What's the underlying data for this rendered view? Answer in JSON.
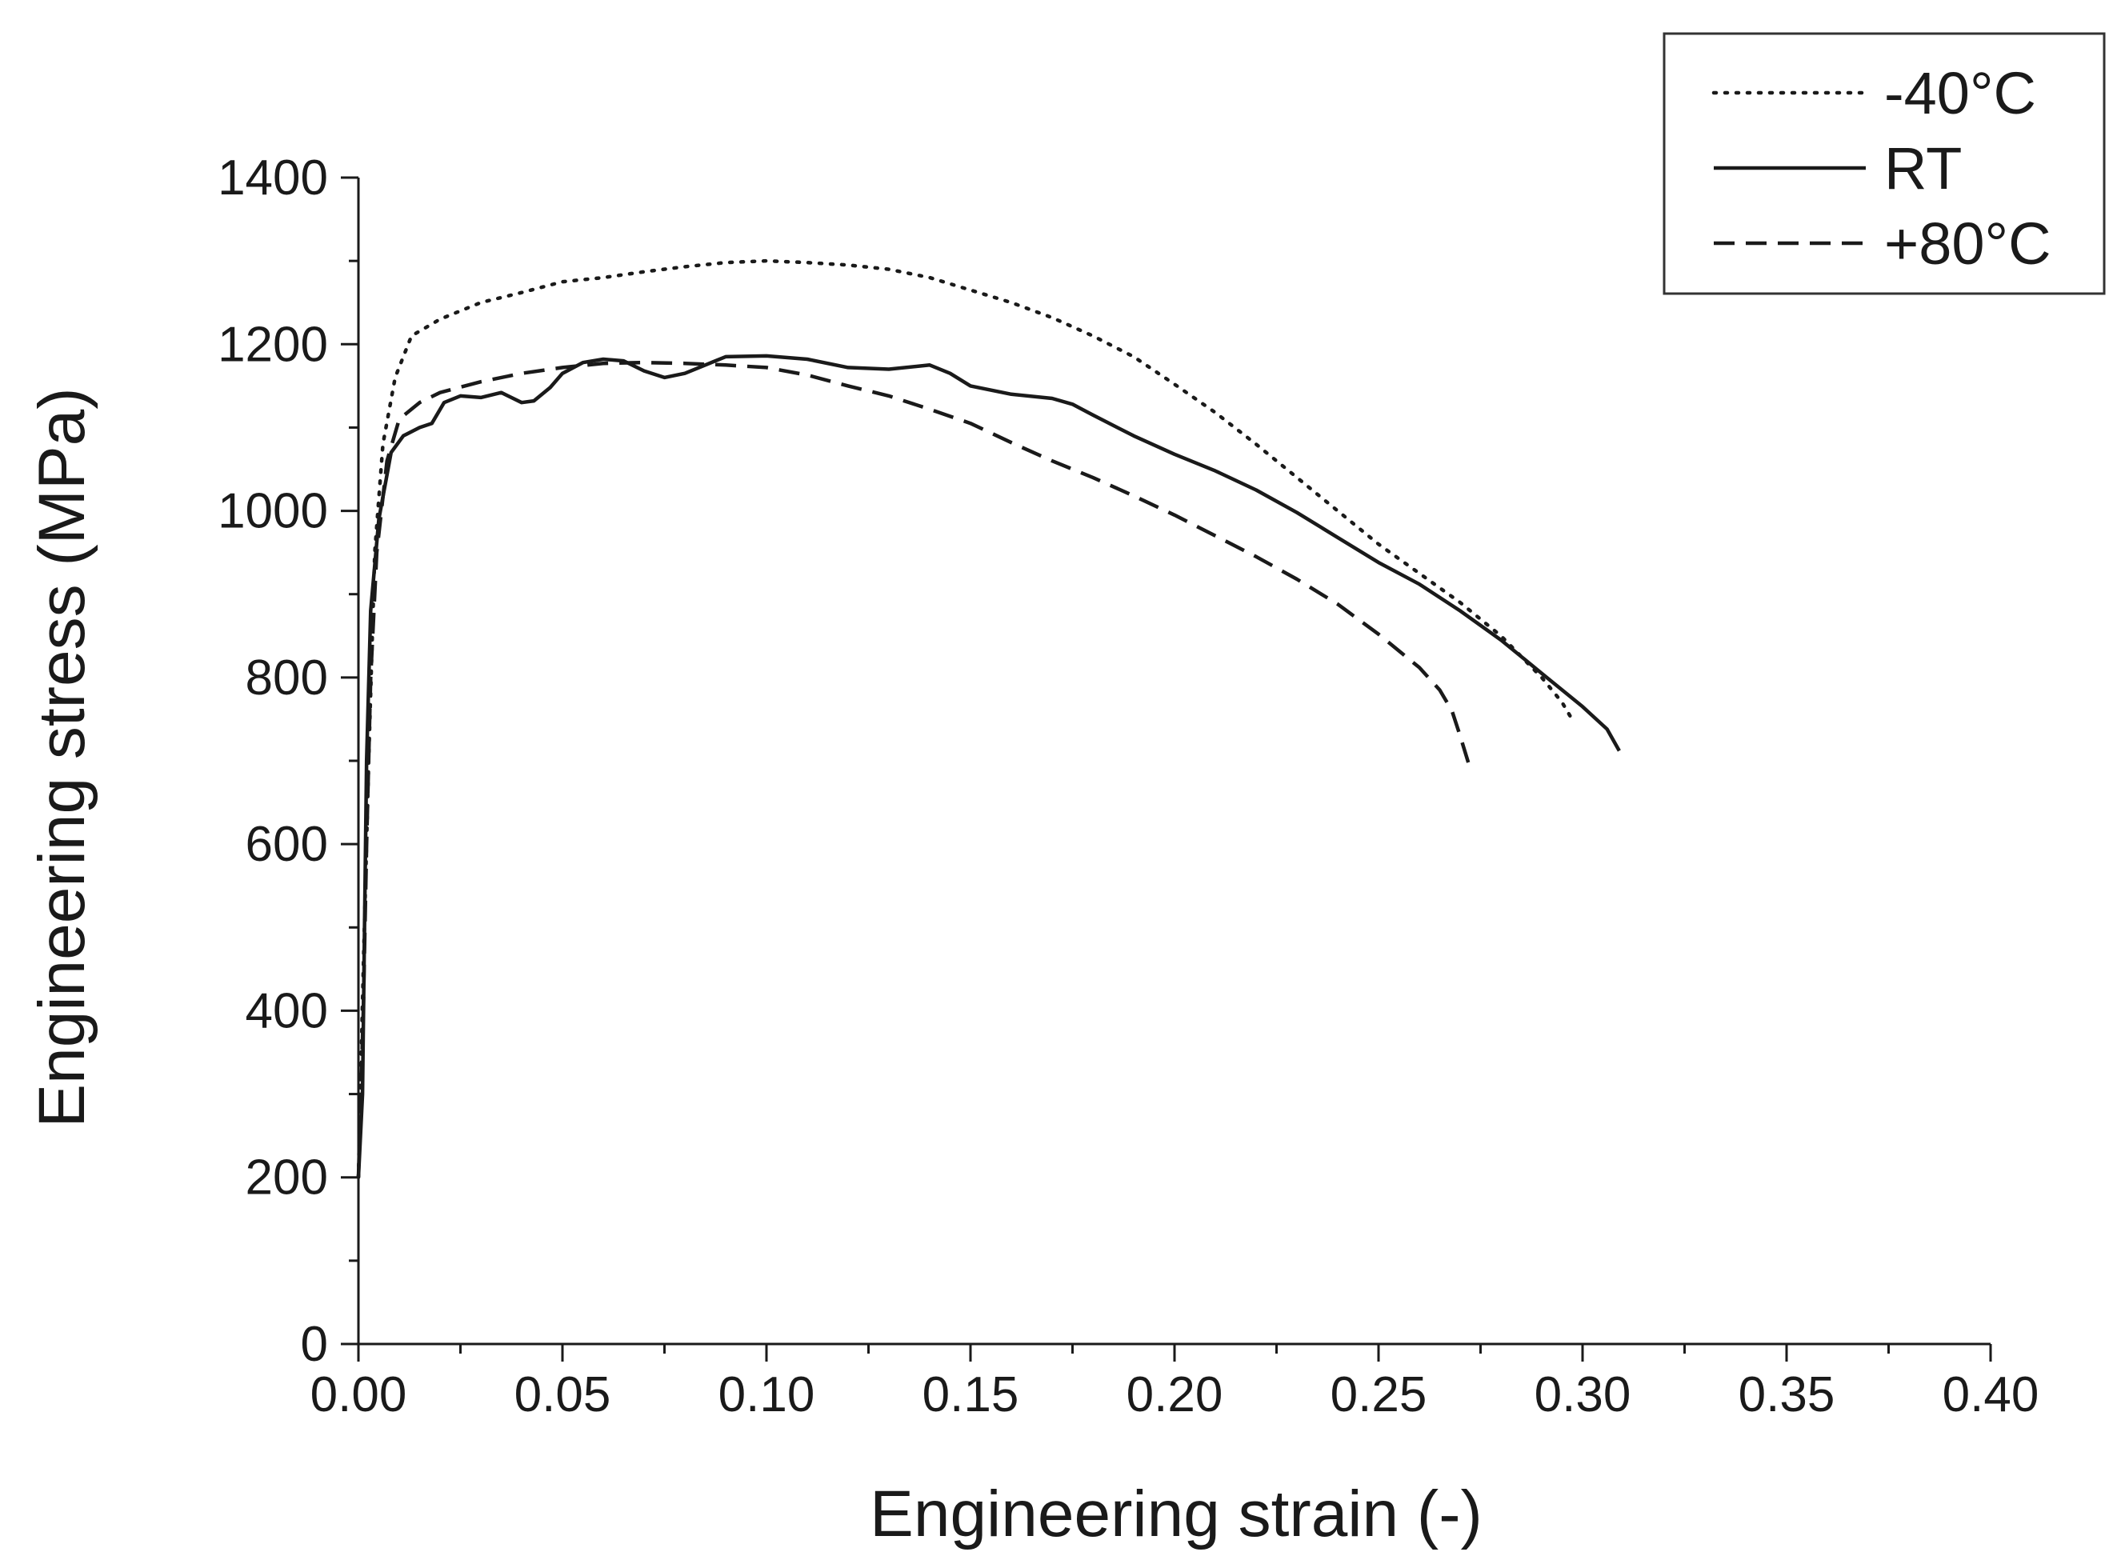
{
  "chart_data": {
    "type": "line",
    "title": "",
    "xlabel": "Engineering strain (-)",
    "ylabel": "Engineering stress (MPa)",
    "xlim": [
      0,
      0.4
    ],
    "ylim": [
      0,
      1400
    ],
    "x_ticks": [
      0,
      0.05,
      0.1,
      0.15,
      0.2,
      0.25,
      0.3,
      0.35,
      0.4
    ],
    "x_tick_labels": [
      "0.00",
      "0.05",
      "0.10",
      "0.15",
      "0.20",
      "0.25",
      "0.30",
      "0.35",
      "0.40"
    ],
    "y_ticks": [
      0,
      200,
      400,
      600,
      800,
      1000,
      1200,
      1400
    ],
    "y_tick_labels": [
      "0",
      "200",
      "400",
      "600",
      "800",
      "1000",
      "1200",
      "1400"
    ],
    "x_minor_step": 0.025,
    "y_minor_step": 100,
    "grid": false,
    "legend_position": "top-right",
    "series": [
      {
        "name": "-40°C",
        "style": "dotted",
        "color": "#1a1a1a",
        "points": [
          [
            0.0,
            200
          ],
          [
            0.0012,
            450
          ],
          [
            0.0025,
            700
          ],
          [
            0.004,
            950
          ],
          [
            0.006,
            1080
          ],
          [
            0.009,
            1160
          ],
          [
            0.013,
            1210
          ],
          [
            0.02,
            1230
          ],
          [
            0.03,
            1250
          ],
          [
            0.04,
            1262
          ],
          [
            0.05,
            1275
          ],
          [
            0.06,
            1280
          ],
          [
            0.07,
            1287
          ],
          [
            0.08,
            1293
          ],
          [
            0.09,
            1298
          ],
          [
            0.1,
            1300
          ],
          [
            0.11,
            1298
          ],
          [
            0.12,
            1295
          ],
          [
            0.13,
            1290
          ],
          [
            0.14,
            1280
          ],
          [
            0.15,
            1265
          ],
          [
            0.16,
            1250
          ],
          [
            0.17,
            1232
          ],
          [
            0.18,
            1210
          ],
          [
            0.19,
            1185
          ],
          [
            0.2,
            1152
          ],
          [
            0.21,
            1118
          ],
          [
            0.22,
            1080
          ],
          [
            0.23,
            1040
          ],
          [
            0.24,
            1000
          ],
          [
            0.25,
            960
          ],
          [
            0.26,
            925
          ],
          [
            0.27,
            890
          ],
          [
            0.28,
            850
          ],
          [
            0.29,
            800
          ],
          [
            0.295,
            770
          ],
          [
            0.298,
            745
          ]
        ]
      },
      {
        "name": "RT",
        "style": "solid",
        "color": "#1a1a1a",
        "points": [
          [
            0.0,
            200
          ],
          [
            0.001,
            300
          ],
          [
            0.0015,
            500
          ],
          [
            0.002,
            700
          ],
          [
            0.003,
            880
          ],
          [
            0.005,
            990
          ],
          [
            0.008,
            1070
          ],
          [
            0.011,
            1090
          ],
          [
            0.015,
            1100
          ],
          [
            0.018,
            1105
          ],
          [
            0.021,
            1130
          ],
          [
            0.025,
            1138
          ],
          [
            0.03,
            1136
          ],
          [
            0.035,
            1142
          ],
          [
            0.04,
            1130
          ],
          [
            0.043,
            1132
          ],
          [
            0.047,
            1148
          ],
          [
            0.05,
            1165
          ],
          [
            0.055,
            1178
          ],
          [
            0.06,
            1182
          ],
          [
            0.065,
            1180
          ],
          [
            0.07,
            1168
          ],
          [
            0.075,
            1160
          ],
          [
            0.08,
            1165
          ],
          [
            0.085,
            1175
          ],
          [
            0.09,
            1185
          ],
          [
            0.1,
            1186
          ],
          [
            0.11,
            1182
          ],
          [
            0.12,
            1172
          ],
          [
            0.13,
            1170
          ],
          [
            0.14,
            1175
          ],
          [
            0.145,
            1165
          ],
          [
            0.15,
            1150
          ],
          [
            0.16,
            1140
          ],
          [
            0.17,
            1135
          ],
          [
            0.175,
            1128
          ],
          [
            0.18,
            1115
          ],
          [
            0.19,
            1090
          ],
          [
            0.2,
            1068
          ],
          [
            0.21,
            1048
          ],
          [
            0.22,
            1025
          ],
          [
            0.23,
            998
          ],
          [
            0.24,
            968
          ],
          [
            0.25,
            938
          ],
          [
            0.26,
            912
          ],
          [
            0.27,
            880
          ],
          [
            0.28,
            845
          ],
          [
            0.29,
            805
          ],
          [
            0.3,
            765
          ],
          [
            0.306,
            738
          ],
          [
            0.309,
            712
          ]
        ]
      },
      {
        "name": "+80°C",
        "style": "dashed",
        "color": "#1a1a1a",
        "points": [
          [
            0.0,
            200
          ],
          [
            0.0012,
            400
          ],
          [
            0.002,
            600
          ],
          [
            0.003,
            800
          ],
          [
            0.0045,
            950
          ],
          [
            0.007,
            1060
          ],
          [
            0.01,
            1110
          ],
          [
            0.015,
            1130
          ],
          [
            0.02,
            1142
          ],
          [
            0.03,
            1155
          ],
          [
            0.04,
            1165
          ],
          [
            0.05,
            1172
          ],
          [
            0.06,
            1177
          ],
          [
            0.07,
            1178
          ],
          [
            0.08,
            1177
          ],
          [
            0.09,
            1175
          ],
          [
            0.1,
            1172
          ],
          [
            0.11,
            1163
          ],
          [
            0.12,
            1150
          ],
          [
            0.13,
            1138
          ],
          [
            0.14,
            1122
          ],
          [
            0.15,
            1105
          ],
          [
            0.16,
            1082
          ],
          [
            0.17,
            1060
          ],
          [
            0.18,
            1040
          ],
          [
            0.19,
            1018
          ],
          [
            0.2,
            995
          ],
          [
            0.21,
            970
          ],
          [
            0.22,
            945
          ],
          [
            0.23,
            918
          ],
          [
            0.24,
            888
          ],
          [
            0.25,
            852
          ],
          [
            0.26,
            812
          ],
          [
            0.265,
            785
          ],
          [
            0.268,
            760
          ],
          [
            0.27,
            730
          ],
          [
            0.272,
            698
          ]
        ]
      }
    ]
  }
}
